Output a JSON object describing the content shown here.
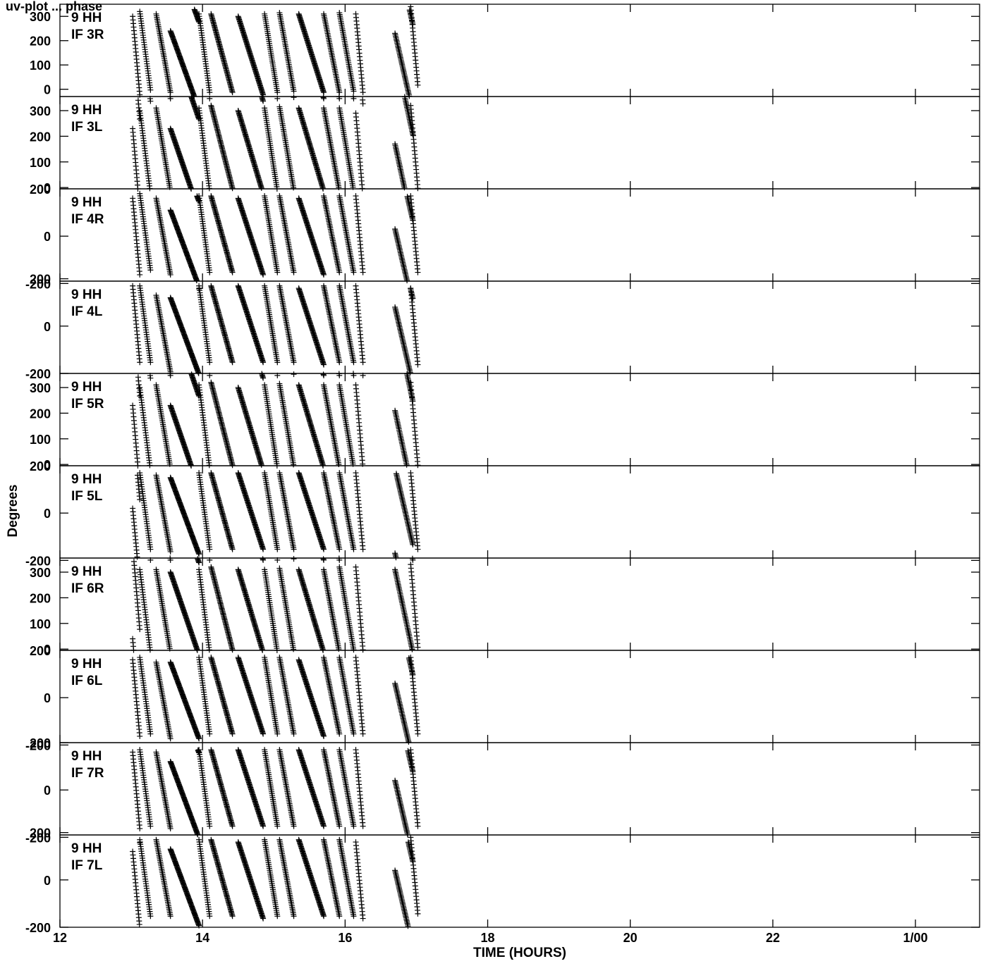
{
  "header_text": "uv-plot ... phase",
  "chart_data": {
    "type": "scatter",
    "xlabel": "TIME (HOURS)",
    "ylabel": "Degrees",
    "xlim": [
      12,
      24.9
    ],
    "x_ticks": [
      {
        "value": 12,
        "label": "12"
      },
      {
        "value": 14,
        "label": "14"
      },
      {
        "value": 16,
        "label": "16"
      },
      {
        "value": 18,
        "label": "18"
      },
      {
        "value": 20,
        "label": "20"
      },
      {
        "value": 22,
        "label": "22"
      },
      {
        "value": 24,
        "label": "1/00"
      }
    ],
    "marker": "+",
    "marker_color": "#000000",
    "panels": [
      {
        "baseline": "9 HH",
        "stokes": "IF 3R",
        "ylim": [
          -30,
          350
        ],
        "yticks": [
          0,
          100,
          200,
          300
        ]
      },
      {
        "baseline": "9 HH",
        "stokes": "IF 3L",
        "ylim": [
          -5,
          355
        ],
        "yticks": [
          0,
          100,
          200,
          300
        ]
      },
      {
        "baseline": "9 HH",
        "stokes": "IF 4R",
        "ylim": [
          -190,
          200
        ],
        "yticks": [
          -200,
          0,
          200
        ]
      },
      {
        "baseline": "9 HH",
        "stokes": "IF 4L",
        "ylim": [
          -200,
          190
        ],
        "yticks": [
          -200,
          0,
          200
        ]
      },
      {
        "baseline": "9 HH",
        "stokes": "IF 5R",
        "ylim": [
          -5,
          355
        ],
        "yticks": [
          0,
          100,
          200,
          300
        ]
      },
      {
        "baseline": "9 HH",
        "stokes": "IF 5L",
        "ylim": [
          -190,
          200
        ],
        "yticks": [
          -200,
          0,
          200
        ]
      },
      {
        "baseline": "9 HH",
        "stokes": "IF 6R",
        "ylim": [
          -5,
          355
        ],
        "yticks": [
          0,
          100,
          200,
          300
        ]
      },
      {
        "baseline": "9 HH",
        "stokes": "IF 6L",
        "ylim": [
          -190,
          200
        ],
        "yticks": [
          -200,
          0,
          200
        ]
      },
      {
        "baseline": "9 HH",
        "stokes": "IF 7R",
        "ylim": [
          -190,
          200
        ],
        "yticks": [
          -200,
          0,
          200
        ]
      },
      {
        "baseline": "9 HH",
        "stokes": "IF 7L",
        "ylim": [
          -200,
          190
        ],
        "yticks": [
          -200,
          0,
          200
        ]
      }
    ],
    "scans": [
      {
        "t0": 13.02,
        "t1": 13.12,
        "phase_start": [
          300,
          230,
          160,
          170,
          230,
          20,
          40,
          160,
          160,
          120
        ]
      },
      {
        "t0": 13.12,
        "t1": 13.27,
        "phase_start": [
          320,
          300,
          180,
          170,
          300,
          170,
          310,
          170,
          170,
          170
        ]
      },
      {
        "t0": 13.35,
        "t1": 13.55,
        "phase_start": [
          310,
          310,
          160,
          130,
          310,
          160,
          310,
          150,
          160,
          170
        ]
      },
      {
        "t0": 13.55,
        "t1": 13.95,
        "phase_start": [
          240,
          230,
          110,
          120,
          230,
          150,
          300,
          150,
          120,
          130
        ]
      },
      {
        "t0": 13.95,
        "t1": 14.1,
        "phase_start": [
          310,
          310,
          170,
          170,
          310,
          170,
          310,
          170,
          170,
          170
        ]
      },
      {
        "t0": 14.12,
        "t1": 14.42,
        "phase_start": [
          310,
          320,
          170,
          170,
          320,
          170,
          320,
          170,
          170,
          170
        ]
      },
      {
        "t0": 14.5,
        "t1": 14.85,
        "phase_start": [
          300,
          300,
          160,
          170,
          300,
          170,
          310,
          170,
          170,
          160
        ]
      },
      {
        "t0": 14.87,
        "t1": 15.05,
        "phase_start": [
          310,
          310,
          170,
          170,
          310,
          170,
          310,
          170,
          170,
          170
        ]
      },
      {
        "t0": 15.08,
        "t1": 15.28,
        "phase_start": [
          315,
          315,
          170,
          170,
          315,
          170,
          315,
          170,
          170,
          170
        ]
      },
      {
        "t0": 15.35,
        "t1": 15.7,
        "phase_start": [
          310,
          310,
          160,
          160,
          310,
          170,
          310,
          160,
          170,
          170
        ]
      },
      {
        "t0": 15.7,
        "t1": 15.92,
        "phase_start": [
          310,
          310,
          170,
          170,
          310,
          170,
          310,
          170,
          170,
          170
        ]
      },
      {
        "t0": 15.92,
        "t1": 16.12,
        "phase_start": [
          315,
          310,
          170,
          170,
          310,
          170,
          320,
          170,
          170,
          170
        ]
      },
      {
        "t0": 16.15,
        "t1": 16.25,
        "phase_start": [
          310,
          290,
          170,
          170,
          310,
          170,
          320,
          170,
          170,
          160
        ]
      },
      {
        "t0": 16.7,
        "t1": 16.95,
        "phase_start": [
          230,
          170,
          30,
          80,
          210,
          -170,
          310,
          60,
          40,
          40
        ]
      },
      {
        "t0": 16.92,
        "t1": 17.02,
        "phase_start": [
          340,
          320,
          170,
          160,
          320,
          170,
          330,
          170,
          170,
          180
        ]
      }
    ]
  }
}
